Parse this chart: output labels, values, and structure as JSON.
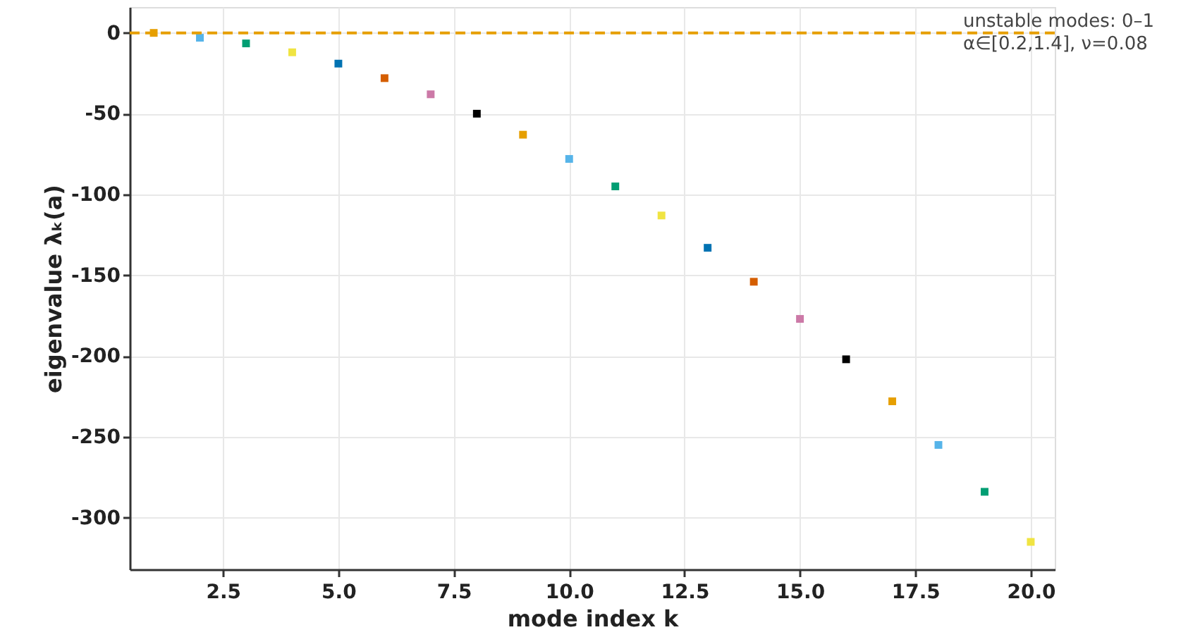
{
  "chart_data": {
    "type": "scatter",
    "xlabel": "mode index k",
    "ylabel": "eigenvalue λₖ(a)",
    "x": [
      1,
      2,
      3,
      4,
      5,
      6,
      7,
      8,
      9,
      10,
      11,
      12,
      13,
      14,
      15,
      16,
      17,
      18,
      19,
      20
    ],
    "values": [
      0,
      -3,
      -6.5,
      -12,
      -19,
      -28,
      -38,
      -50,
      -63,
      -78,
      -95,
      -113,
      -133,
      -154,
      -177,
      -202,
      -228,
      -255,
      -284,
      -315
    ],
    "colors": [
      "#e69f00",
      "#56b4e9",
      "#009e73",
      "#f0e442",
      "#0072b2",
      "#d55e00",
      "#cc79a7",
      "#000000",
      "#e69f00",
      "#56b4e9",
      "#009e73",
      "#f0e442",
      "#0072b2",
      "#d55e00",
      "#cc79a7",
      "#000000",
      "#e69f00",
      "#56b4e9",
      "#009e73",
      "#f0e442"
    ],
    "marker": "square",
    "xlim": [
      0.48,
      20.52
    ],
    "ylim": [
      -332,
      16
    ],
    "xticks": [
      {
        "value": 2.5,
        "label": "2.5"
      },
      {
        "value": 5,
        "label": "5.0"
      },
      {
        "value": 7.5,
        "label": "7.5"
      },
      {
        "value": 10,
        "label": "10.0"
      },
      {
        "value": 12.5,
        "label": "12.5"
      },
      {
        "value": 15,
        "label": "15.0"
      },
      {
        "value": 17.5,
        "label": "17.5"
      },
      {
        "value": 20,
        "label": "20.0"
      }
    ],
    "yticks": [
      0,
      -50,
      -100,
      -150,
      -200,
      -250,
      -300
    ],
    "grid": true,
    "ref_lines": [
      {
        "axis": "y",
        "value": 0,
        "color": "#e69f00",
        "line_style": "dashed"
      }
    ],
    "annotations": [
      "unstable modes: 0–1",
      "α∈[0.2,1.4], ν=0.08"
    ]
  }
}
